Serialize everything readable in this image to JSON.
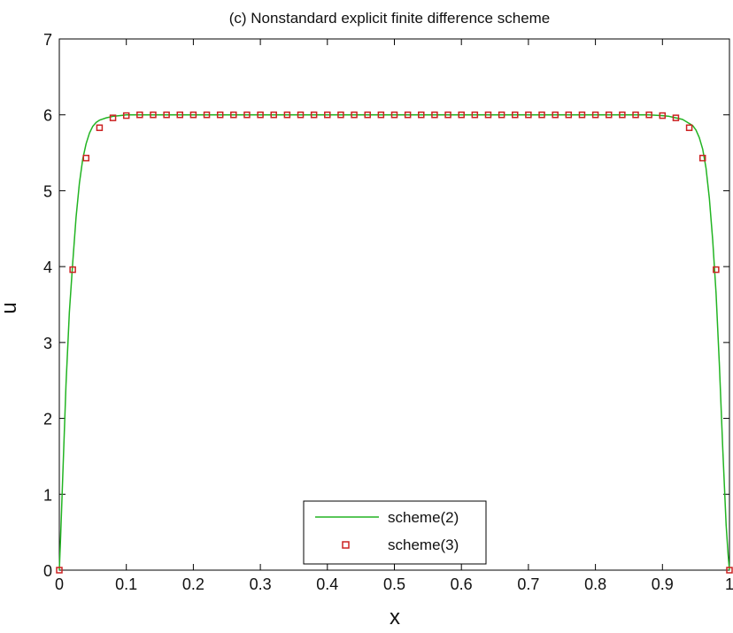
{
  "chart_data": {
    "type": "line",
    "title": "(c) Nonstandard explicit finite difference scheme",
    "xlabel": "x",
    "ylabel": "u",
    "xlim": [
      0,
      1
    ],
    "ylim": [
      0,
      7
    ],
    "xticks": [
      0,
      0.1,
      0.2,
      0.3,
      0.4,
      0.5,
      0.6,
      0.7,
      0.8,
      0.9,
      1
    ],
    "xtick_labels": [
      "0",
      "0.1",
      "0.2",
      "0.3",
      "0.4",
      "0.5",
      "0.6",
      "0.7",
      "0.8",
      "0.9",
      "1"
    ],
    "yticks": [
      0,
      1,
      2,
      3,
      4,
      5,
      6,
      7
    ],
    "ytick_labels": [
      "0",
      "1",
      "2",
      "3",
      "4",
      "5",
      "6",
      "7"
    ],
    "grid": false,
    "legend_position": "bottom-center",
    "series": [
      {
        "name": "scheme(2)",
        "style": "line",
        "color": "#22b422",
        "x": [
          0,
          0.002,
          0.005,
          0.01,
          0.015,
          0.02,
          0.025,
          0.03,
          0.035,
          0.04,
          0.045,
          0.05,
          0.055,
          0.06,
          0.07,
          0.08,
          0.09,
          0.1,
          0.12,
          0.15,
          0.2,
          0.3,
          0.4,
          0.5,
          0.6,
          0.7,
          0.8,
          0.85,
          0.88,
          0.9,
          0.91,
          0.93,
          0.945,
          0.95,
          0.955,
          0.96,
          0.965,
          0.97,
          0.975,
          0.98,
          0.985,
          0.99,
          0.995,
          0.998,
          1
        ],
        "y": [
          0,
          0.45,
          1.2,
          2.45,
          3.4,
          4.05,
          4.65,
          5.1,
          5.42,
          5.62,
          5.76,
          5.85,
          5.9,
          5.93,
          5.96,
          5.98,
          5.99,
          6.0,
          6.0,
          6.0,
          6.0,
          6.0,
          6.0,
          6.0,
          6.0,
          6.0,
          6.0,
          6.0,
          6.0,
          5.99,
          5.98,
          5.94,
          5.86,
          5.8,
          5.7,
          5.55,
          5.3,
          4.9,
          4.35,
          3.65,
          2.7,
          1.6,
          0.6,
          0.2,
          0
        ]
      },
      {
        "name": "scheme(3)",
        "style": "markers",
        "marker": "square",
        "color": "#cc2222",
        "x": [
          0,
          0.02,
          0.04,
          0.06,
          0.08,
          0.1,
          0.12,
          0.14,
          0.16,
          0.18,
          0.2,
          0.22,
          0.24,
          0.26,
          0.28,
          0.3,
          0.32,
          0.34,
          0.36,
          0.38,
          0.4,
          0.42,
          0.44,
          0.46,
          0.48,
          0.5,
          0.52,
          0.54,
          0.56,
          0.58,
          0.6,
          0.62,
          0.64,
          0.66,
          0.68,
          0.7,
          0.72,
          0.74,
          0.76,
          0.78,
          0.8,
          0.82,
          0.84,
          0.86,
          0.88,
          0.9,
          0.92,
          0.94,
          0.96,
          0.98,
          1
        ],
        "y": [
          0,
          3.96,
          5.43,
          5.83,
          5.96,
          5.99,
          6.0,
          6.0,
          6.0,
          6.0,
          6.0,
          6.0,
          6.0,
          6.0,
          6.0,
          6.0,
          6.0,
          6.0,
          6.0,
          6.0,
          6.0,
          6.0,
          6.0,
          6.0,
          6.0,
          6.0,
          6.0,
          6.0,
          6.0,
          6.0,
          6.0,
          6.0,
          6.0,
          6.0,
          6.0,
          6.0,
          6.0,
          6.0,
          6.0,
          6.0,
          6.0,
          6.0,
          6.0,
          6.0,
          6.0,
          5.99,
          5.96,
          5.83,
          5.43,
          3.96,
          0
        ]
      }
    ]
  }
}
